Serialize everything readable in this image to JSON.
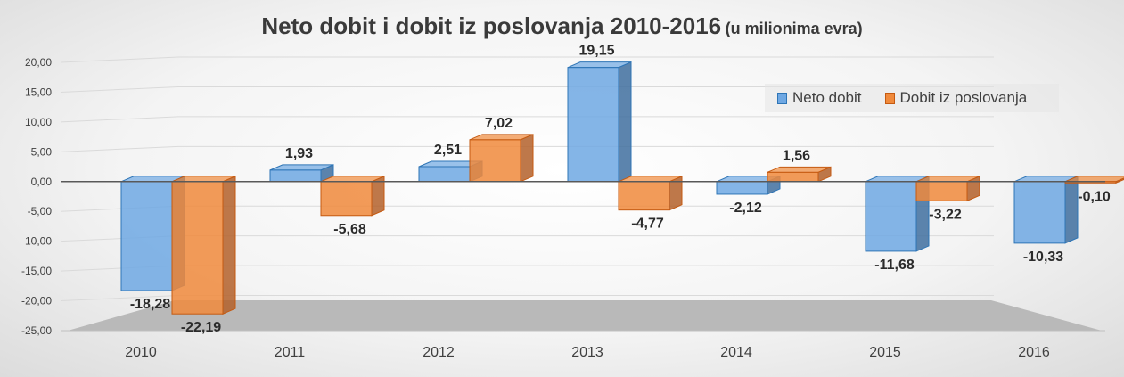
{
  "title": {
    "main": "Neto dobit i dobit iz poslovanja 2010-2016",
    "sub": "(u milionima evra)"
  },
  "colors": {
    "neto": "#6fa8e3",
    "neto_dark": "#3f6f9f",
    "poslovanje": "#f08a3c",
    "poslovanje_dark": "#b3602a"
  },
  "chart_data": {
    "type": "bar",
    "categories": [
      "2010",
      "2011",
      "2012",
      "2013",
      "2014",
      "2015",
      "2016"
    ],
    "series": [
      {
        "name": "Neto dobit",
        "values": [
          -18.28,
          1.93,
          2.51,
          19.15,
          -2.12,
          -11.68,
          -10.33
        ]
      },
      {
        "name": "Dobit iz poslovanja",
        "values": [
          -22.19,
          -5.68,
          7.02,
          -4.77,
          1.56,
          -3.22,
          -0.1
        ]
      }
    ],
    "value_labels": [
      [
        "-18,28",
        "1,93",
        "2,51",
        "19,15",
        "-2,12",
        "-11,68",
        "-10,33"
      ],
      [
        "-22,19",
        "-5,68",
        "7,02",
        "-4,77",
        "1,56",
        "-3,22",
        "-0,10"
      ]
    ],
    "y_ticks": [
      "20,00",
      "15,00",
      "10,00",
      "5,00",
      "0,00",
      "-5,00",
      "-10,00",
      "-15,00",
      "-20,00",
      "-25,00"
    ],
    "ylim": [
      -25,
      20
    ],
    "grid": true,
    "legend_position": "top-right",
    "style": "3d-clustered-column"
  }
}
